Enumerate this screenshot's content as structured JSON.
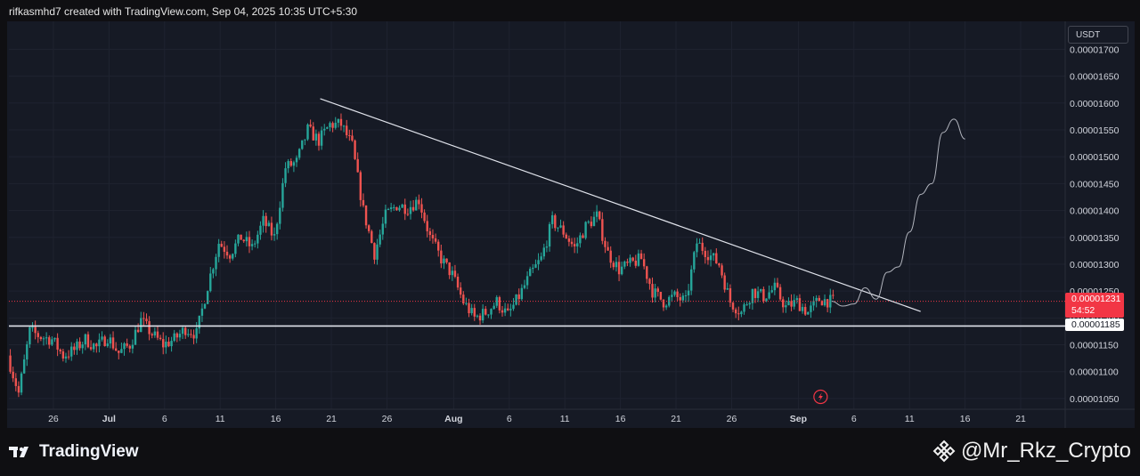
{
  "header": {
    "credit": "rifkasmhd7 created with TradingView.com, Sep 04, 2025 10:35 UTC+5:30"
  },
  "footer": {
    "brand": "TradingView",
    "watermark": "@Mr_Rkz_Crypto"
  },
  "colors": {
    "up": "#26a69a",
    "down": "#ef5350",
    "background": "#161a25",
    "price_line": "#f23645",
    "trend_line": "#e0e3eb"
  },
  "chart_data": {
    "type": "candlestick",
    "currency": "USDT",
    "current_price": "0.00001231",
    "countdown": "54:52",
    "support_level_label": "0.00001185",
    "ylim": [
      1.03e-05,
      1.752e-05
    ],
    "y_ticks": [
      {
        "value": 1.05e-05,
        "label": "0.00001050"
      },
      {
        "value": 1.1e-05,
        "label": "0.00001100"
      },
      {
        "value": 1.15e-05,
        "label": "0.00001150"
      },
      {
        "value": 1.2e-05,
        "label": "0.00001200"
      },
      {
        "value": 1.25e-05,
        "label": "0.00001250"
      },
      {
        "value": 1.3e-05,
        "label": "0.00001300"
      },
      {
        "value": 1.35e-05,
        "label": "0.00001350"
      },
      {
        "value": 1.4e-05,
        "label": "0.00001400"
      },
      {
        "value": 1.45e-05,
        "label": "0.00001450"
      },
      {
        "value": 1.5e-05,
        "label": "0.00001500"
      },
      {
        "value": 1.55e-05,
        "label": "0.00001550"
      },
      {
        "value": 1.6e-05,
        "label": "0.00001600"
      },
      {
        "value": 1.65e-05,
        "label": "0.00001650"
      },
      {
        "value": 1.7e-05,
        "label": "0.00001700"
      }
    ],
    "x_domain": [
      "2025-06-22",
      "2025-09-25"
    ],
    "x_ticks": [
      {
        "date": "2025-06-26",
        "label": "26",
        "bold": false
      },
      {
        "date": "2025-07-01",
        "label": "Jul",
        "bold": true
      },
      {
        "date": "2025-07-06",
        "label": "6",
        "bold": false
      },
      {
        "date": "2025-07-11",
        "label": "11",
        "bold": false
      },
      {
        "date": "2025-07-16",
        "label": "16",
        "bold": false
      },
      {
        "date": "2025-07-21",
        "label": "21",
        "bold": false
      },
      {
        "date": "2025-07-26",
        "label": "26",
        "bold": false
      },
      {
        "date": "2025-08-01",
        "label": "Aug",
        "bold": true
      },
      {
        "date": "2025-08-06",
        "label": "6",
        "bold": false
      },
      {
        "date": "2025-08-11",
        "label": "11",
        "bold": false
      },
      {
        "date": "2025-08-16",
        "label": "16",
        "bold": false
      },
      {
        "date": "2025-08-21",
        "label": "21",
        "bold": false
      },
      {
        "date": "2025-08-26",
        "label": "26",
        "bold": false
      },
      {
        "date": "2025-09-01",
        "label": "Sep",
        "bold": true
      },
      {
        "date": "2025-09-06",
        "label": "6",
        "bold": false
      },
      {
        "date": "2025-09-11",
        "label": "11",
        "bold": false
      },
      {
        "date": "2025-09-16",
        "label": "16",
        "bold": false
      },
      {
        "date": "2025-09-21",
        "label": "21",
        "bold": false
      }
    ],
    "price_path": [
      [
        "2025-06-22",
        1.13e-05
      ],
      [
        "2025-06-23",
        1.06e-05
      ],
      [
        "2025-06-24",
        1.175e-05
      ],
      [
        "2025-06-25",
        1.165e-05
      ],
      [
        "2025-06-26",
        1.16e-05
      ],
      [
        "2025-06-27",
        1.13e-05
      ],
      [
        "2025-06-28",
        1.14e-05
      ],
      [
        "2025-06-29",
        1.16e-05
      ],
      [
        "2025-06-30",
        1.145e-05
      ],
      [
        "2025-07-01",
        1.165e-05
      ],
      [
        "2025-07-02",
        1.135e-05
      ],
      [
        "2025-07-03",
        1.15e-05
      ],
      [
        "2025-07-04",
        1.195e-05
      ],
      [
        "2025-07-05",
        1.17e-05
      ],
      [
        "2025-07-06",
        1.15e-05
      ],
      [
        "2025-07-07",
        1.16e-05
      ],
      [
        "2025-07-08",
        1.18e-05
      ],
      [
        "2025-07-09",
        1.17e-05
      ],
      [
        "2025-07-10",
        1.26e-05
      ],
      [
        "2025-07-11",
        1.34e-05
      ],
      [
        "2025-07-12",
        1.32e-05
      ],
      [
        "2025-07-13",
        1.35e-05
      ],
      [
        "2025-07-14",
        1.33e-05
      ],
      [
        "2025-07-15",
        1.38e-05
      ],
      [
        "2025-07-16",
        1.35e-05
      ],
      [
        "2025-07-17",
        1.48e-05
      ],
      [
        "2025-07-18",
        1.49e-05
      ],
      [
        "2025-07-19",
        1.55e-05
      ],
      [
        "2025-07-20",
        1.53e-05
      ],
      [
        "2025-07-21",
        1.56e-05
      ],
      [
        "2025-07-22",
        1.56e-05
      ],
      [
        "2025-07-23",
        1.52e-05
      ],
      [
        "2025-07-24",
        1.4e-05
      ],
      [
        "2025-07-25",
        1.32e-05
      ],
      [
        "2025-07-26",
        1.39e-05
      ],
      [
        "2025-07-27",
        1.41e-05
      ],
      [
        "2025-07-28",
        1.405e-05
      ],
      [
        "2025-07-29",
        1.42e-05
      ],
      [
        "2025-07-30",
        1.35e-05
      ],
      [
        "2025-07-31",
        1.31e-05
      ],
      [
        "2025-08-01",
        1.28e-05
      ],
      [
        "2025-08-02",
        1.23e-05
      ],
      [
        "2025-08-03",
        1.2e-05
      ],
      [
        "2025-08-04",
        1.21e-05
      ],
      [
        "2025-08-05",
        1.23e-05
      ],
      [
        "2025-08-06",
        1.205e-05
      ],
      [
        "2025-08-07",
        1.24e-05
      ],
      [
        "2025-08-08",
        1.28e-05
      ],
      [
        "2025-08-09",
        1.31e-05
      ],
      [
        "2025-08-10",
        1.38e-05
      ],
      [
        "2025-08-11",
        1.36e-05
      ],
      [
        "2025-08-12",
        1.33e-05
      ],
      [
        "2025-08-13",
        1.37e-05
      ],
      [
        "2025-08-14",
        1.39e-05
      ],
      [
        "2025-08-15",
        1.32e-05
      ],
      [
        "2025-08-16",
        1.29e-05
      ],
      [
        "2025-08-17",
        1.3e-05
      ],
      [
        "2025-08-18",
        1.31e-05
      ],
      [
        "2025-08-19",
        1.25e-05
      ],
      [
        "2025-08-20",
        1.23e-05
      ],
      [
        "2025-08-21",
        1.24e-05
      ],
      [
        "2025-08-22",
        1.23e-05
      ],
      [
        "2025-08-23",
        1.34e-05
      ],
      [
        "2025-08-24",
        1.32e-05
      ],
      [
        "2025-08-25",
        1.3e-05
      ],
      [
        "2025-08-26",
        1.23e-05
      ],
      [
        "2025-08-27",
        1.21e-05
      ],
      [
        "2025-08-28",
        1.25e-05
      ],
      [
        "2025-08-29",
        1.24e-05
      ],
      [
        "2025-08-30",
        1.255e-05
      ],
      [
        "2025-08-31",
        1.22e-05
      ],
      [
        "2025-09-01",
        1.23e-05
      ],
      [
        "2025-09-02",
        1.21e-05
      ],
      [
        "2025-09-03",
        1.235e-05
      ],
      [
        "2025-09-04",
        1.231e-05
      ]
    ],
    "trendline": [
      [
        "2025-07-20",
        1.608e-05
      ],
      [
        "2025-09-12",
        1.212e-05
      ]
    ],
    "support_line_value": 1.185e-05,
    "projection": [
      [
        "2025-09-04",
        1.231e-05
      ],
      [
        "2025-09-05",
        1.222e-05
      ],
      [
        "2025-09-06",
        1.226e-05
      ],
      [
        "2025-09-07",
        1.256e-05
      ],
      [
        "2025-09-08",
        1.235e-05
      ],
      [
        "2025-09-09",
        1.285e-05
      ],
      [
        "2025-09-10",
        1.295e-05
      ],
      [
        "2025-09-11",
        1.36e-05
      ],
      [
        "2025-09-12",
        1.43e-05
      ],
      [
        "2025-09-13",
        1.45e-05
      ],
      [
        "2025-09-14",
        1.545e-05
      ],
      [
        "2025-09-15",
        1.57e-05
      ],
      [
        "2025-09-16",
        1.533e-05
      ]
    ]
  }
}
